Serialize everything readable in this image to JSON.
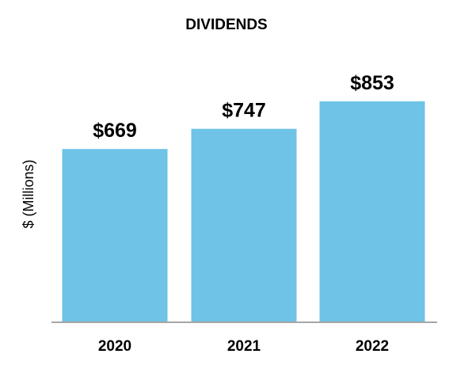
{
  "chart_data": {
    "type": "bar",
    "title": "DIVIDENDS",
    "xlabel": "",
    "ylabel": "$ (Millions)",
    "categories": [
      "2020",
      "2021",
      "2022"
    ],
    "values": [
      669,
      747,
      853
    ],
    "value_labels": [
      "$669",
      "$747",
      "$853"
    ],
    "ylim": [
      0,
      853
    ],
    "grid": false,
    "legend": "none",
    "colors": {
      "bar": "#6EC3E6",
      "axis": "#A6A6A6",
      "text": "#000000"
    }
  }
}
